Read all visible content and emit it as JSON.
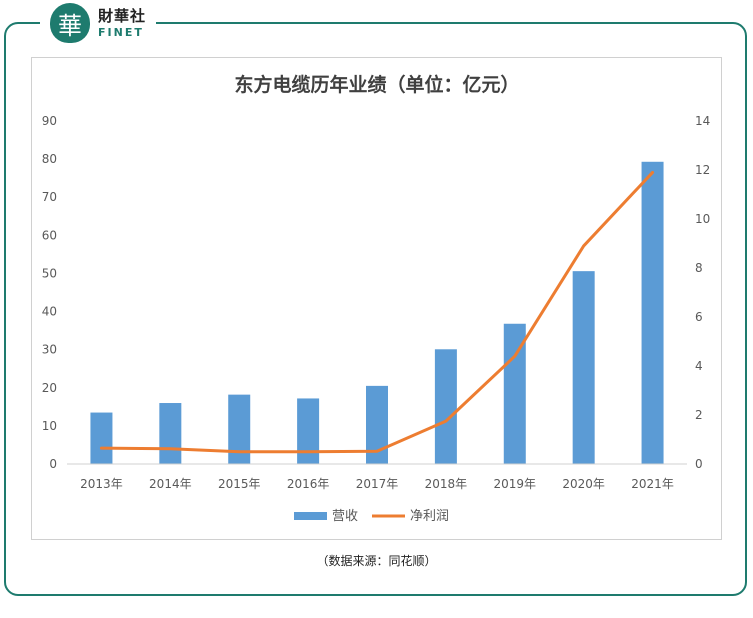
{
  "brand": {
    "cn": "財華社",
    "en": "FINET",
    "logo_glyph": "華"
  },
  "chart_data": {
    "type": "bar+line",
    "title": "东方电缆历年业绩（单位：亿元）",
    "categories": [
      "2013年",
      "2014年",
      "2015年",
      "2016年",
      "2017年",
      "2018年",
      "2019年",
      "2020年",
      "2021年"
    ],
    "series": [
      {
        "name": "营收",
        "type": "bar",
        "axis": "left",
        "color": "#5b9bd5",
        "values": [
          13.5,
          16.0,
          18.2,
          17.2,
          20.5,
          30.1,
          36.8,
          50.6,
          79.3
        ]
      },
      {
        "name": "净利润",
        "type": "line",
        "axis": "right",
        "color": "#ed7d31",
        "values": [
          0.65,
          0.62,
          0.5,
          0.5,
          0.52,
          1.75,
          4.4,
          8.9,
          11.9
        ]
      }
    ],
    "left_axis": {
      "ylim": [
        0,
        90
      ],
      "ticks": [
        "0",
        "10",
        "20",
        "30",
        "40",
        "50",
        "60",
        "70",
        "80",
        "90"
      ]
    },
    "right_axis": {
      "ylim": [
        0,
        14
      ],
      "ticks": [
        "0",
        "2",
        "4",
        "6",
        "8",
        "10",
        "12",
        "14"
      ]
    },
    "legend_position": "bottom",
    "grid": false
  },
  "source_note": "（数据来源：同花顺）"
}
